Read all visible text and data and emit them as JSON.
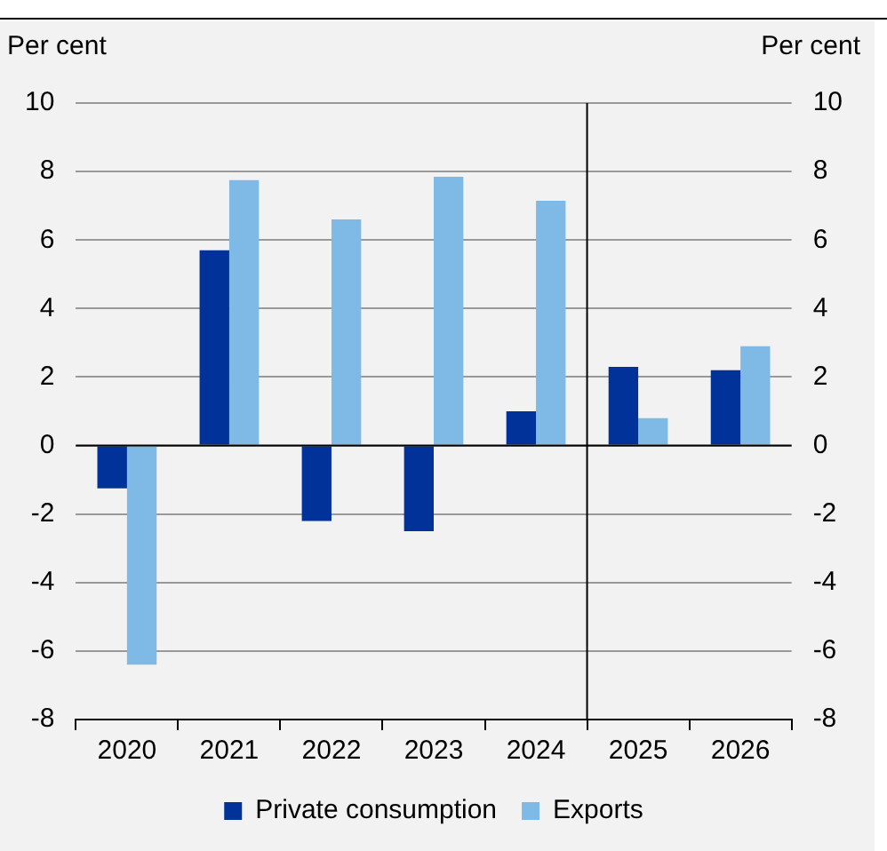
{
  "chart_data": {
    "type": "bar",
    "ylabel": "Per cent",
    "y2label": "Per cent",
    "categories": [
      "2020",
      "2021",
      "2022",
      "2023",
      "2024",
      "2025",
      "2026"
    ],
    "series": [
      {
        "name": "Private consumption",
        "color": "#003299",
        "values": [
          -1.25,
          5.7,
          -2.2,
          -2.5,
          1.0,
          2.3,
          2.2
        ]
      },
      {
        "name": "Exports",
        "color": "#7fbae6",
        "values": [
          -6.4,
          7.75,
          6.6,
          7.85,
          7.15,
          0.8,
          2.9
        ]
      }
    ],
    "ylim": [
      -8,
      10
    ],
    "yticks": [
      -8,
      -6,
      -4,
      -2,
      0,
      2,
      4,
      6,
      8,
      10
    ],
    "y2lim": [
      -8,
      10
    ],
    "y2ticks": [
      -8,
      -6,
      -4,
      -2,
      0,
      2,
      4,
      6,
      8,
      10
    ],
    "grid": "y",
    "legend": "bottom"
  }
}
